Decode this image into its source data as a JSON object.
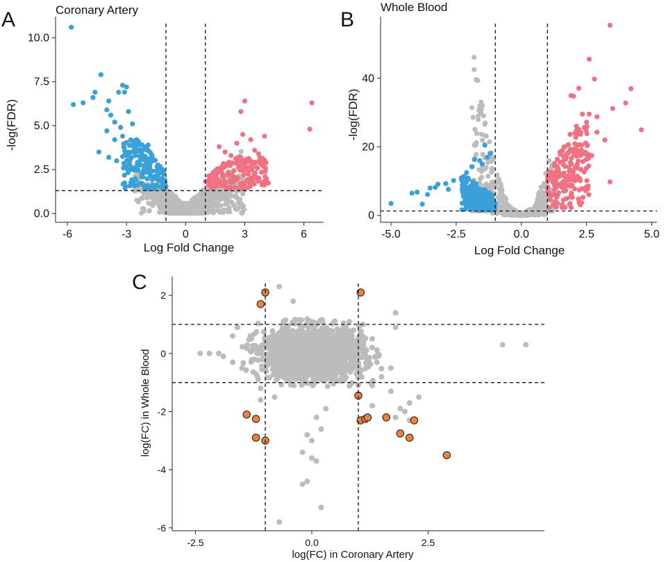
{
  "colors": {
    "down": "#3b9fd8",
    "up": "#f07182",
    "ns": "#bcbcbc",
    "highlight": "#f08040",
    "highlight_edge": "#222222"
  },
  "chart_data": [
    {
      "panel": "A",
      "type": "scatter",
      "title": "Coronary Artery",
      "xlabel": "Log Fold Change",
      "ylabel": "-log(FDR)",
      "xlim": [
        -6.6,
        7.0
      ],
      "ylim": [
        -0.5,
        11.2
      ],
      "xticks": [
        -6,
        -3,
        0,
        3,
        6
      ],
      "xtick_labels": [
        "-6",
        "-3",
        "0",
        "3",
        "6"
      ],
      "yticks": [
        0,
        2.5,
        5,
        7.5,
        10
      ],
      "ytick_labels": [
        "0.0",
        "2.5",
        "5.0",
        "7.5",
        "10.0"
      ],
      "vlines": [
        -1,
        1
      ],
      "hlines": [
        1.3
      ],
      "series": [
        {
          "name": "down",
          "color_key": "down",
          "cluster": {
            "xmin": -3.2,
            "xmax": -1.0,
            "ymin": 1.4,
            "ymax": 4.2,
            "n": 160
          },
          "points": [
            [
              -5.8,
              10.6
            ],
            [
              -5.7,
              6.2
            ],
            [
              -5.2,
              6.3
            ],
            [
              -4.7,
              6.6
            ],
            [
              -4.3,
              7.9
            ],
            [
              -4.6,
              6.9
            ],
            [
              -4.4,
              3.5
            ],
            [
              -4.0,
              5.9
            ],
            [
              -3.9,
              6.4
            ],
            [
              -3.6,
              5.2
            ],
            [
              -3.4,
              6.9
            ],
            [
              -3.2,
              7.3
            ],
            [
              -3.1,
              6.9
            ],
            [
              -3.0,
              7.2
            ],
            [
              -2.9,
              5.8
            ],
            [
              -2.7,
              5.1
            ],
            [
              -3.8,
              5.6
            ],
            [
              -3.3,
              4.9
            ],
            [
              -4.0,
              4.7
            ],
            [
              -3.9,
              3.2
            ],
            [
              -3.5,
              3.0
            ],
            [
              -3.2,
              4.4
            ],
            [
              -2.5,
              4.2
            ],
            [
              -2.4,
              4.1
            ],
            [
              -2.1,
              3.8
            ],
            [
              -1.9,
              3.9
            ],
            [
              -3.6,
              4.2
            ],
            [
              -3.1,
              2.8
            ]
          ]
        },
        {
          "name": "up",
          "color_key": "up",
          "cluster": {
            "xmin": 1.0,
            "xmax": 4.2,
            "ymin": 1.4,
            "ymax": 3.2,
            "n": 170
          },
          "points": [
            [
              6.4,
              6.3
            ],
            [
              6.3,
              4.8
            ],
            [
              3.0,
              6.4
            ],
            [
              2.8,
              5.8
            ],
            [
              2.9,
              4.5
            ],
            [
              4.0,
              4.4
            ],
            [
              3.3,
              4.2
            ],
            [
              3.9,
              3.0
            ],
            [
              1.7,
              3.8
            ],
            [
              2.0,
              3.5
            ],
            [
              2.3,
              3.3
            ],
            [
              3.5,
              3.6
            ],
            [
              3.7,
              3.4
            ],
            [
              2.6,
              4.0
            ],
            [
              2.7,
              3.2
            ]
          ]
        },
        {
          "name": "ns",
          "color_key": "ns",
          "volcano": {
            "xmin": -2.6,
            "xmax": 3.0,
            "a": 0.45,
            "n": 750
          }
        }
      ]
    },
    {
      "panel": "B",
      "type": "scatter",
      "title": "Whole Blood",
      "xlabel": "Log Fold Change",
      "ylabel": "-log(FDR)",
      "xlim": [
        -5.4,
        5.2
      ],
      "ylim": [
        -2,
        58
      ],
      "xticks": [
        -5,
        -2.5,
        0,
        2.5,
        5
      ],
      "xtick_labels": [
        "-5.0",
        "-2.5",
        "0.0",
        "2.5",
        "5.0"
      ],
      "yticks": [
        0,
        20,
        40
      ],
      "ytick_labels": [
        "0",
        "20",
        "40"
      ],
      "vlines": [
        -1,
        1
      ],
      "hlines": [
        1.3
      ],
      "series": [
        {
          "name": "down",
          "color_key": "down",
          "cluster": {
            "xmin": -2.3,
            "xmax": -1.0,
            "ymin": 1.5,
            "ymax": 12.5,
            "n": 240
          },
          "points": [
            [
              -5.0,
              3.5
            ],
            [
              -4.2,
              6.5
            ],
            [
              -4.0,
              6.8
            ],
            [
              -3.8,
              3.3
            ],
            [
              -3.6,
              6.1
            ],
            [
              -3.5,
              8.0
            ],
            [
              -3.3,
              8.2
            ],
            [
              -3.2,
              9.1
            ],
            [
              -2.9,
              9.3
            ],
            [
              -2.8,
              7.6
            ],
            [
              -2.6,
              10.2
            ],
            [
              -2.3,
              11.0
            ],
            [
              -2.1,
              12.5
            ],
            [
              -1.9,
              14.2
            ],
            [
              -1.8,
              16.3
            ],
            [
              -1.6,
              16.0
            ],
            [
              -1.5,
              15.0
            ],
            [
              -1.4,
              20.5
            ],
            [
              -1.2,
              18.1
            ],
            [
              -1.3,
              17.0
            ]
          ]
        },
        {
          "name": "up",
          "color_key": "up",
          "cluster": {
            "xmin": 1.0,
            "xmax": 2.6,
            "ymin": 2,
            "ymax": 30,
            "n": 200
          },
          "points": [
            [
              3.4,
              55.5
            ],
            [
              2.6,
              45.6
            ],
            [
              2.8,
              39.8
            ],
            [
              2.2,
              37.1
            ],
            [
              4.2,
              37.0
            ],
            [
              1.9,
              35.0
            ],
            [
              2.0,
              34.8
            ],
            [
              4.0,
              32.8
            ],
            [
              3.5,
              31.2
            ],
            [
              4.6,
              25.0
            ],
            [
              3.4,
              9.8
            ],
            [
              2.9,
              28.8
            ],
            [
              2.5,
              27.2
            ],
            [
              2.9,
              24.3
            ],
            [
              3.2,
              22.0
            ],
            [
              2.7,
              17.5
            ]
          ]
        },
        {
          "name": "ns",
          "color_key": "ns",
          "volcano": {
            "xmin": -1.9,
            "xmax": 1.2,
            "a": 14.5,
            "n": 900
          }
        }
      ]
    },
    {
      "panel": "C",
      "type": "scatter",
      "title": "",
      "xlabel": "log(FC) in Coronary Artery",
      "ylabel": "log(FC) in Whole Blood",
      "xlim": [
        -3.0,
        5.0
      ],
      "ylim": [
        -6.1,
        2.65
      ],
      "xticks": [
        -2.5,
        0,
        2.5
      ],
      "xtick_labels": [
        "-2.5",
        "0.0",
        "2.5"
      ],
      "yticks": [
        2,
        0,
        -2,
        -4,
        -6
      ],
      "ytick_labels": [
        "2",
        "0",
        "-2",
        "-4",
        "-6"
      ],
      "vlines": [
        -1,
        1
      ],
      "hlines": [
        1,
        -1
      ],
      "series": [
        {
          "name": "ns",
          "color_key": "ns",
          "cloud": {
            "cx": 0.0,
            "cy": 0.0,
            "sx": 0.55,
            "sy": 0.45,
            "n": 1600
          },
          "points": [
            [
              -2.4,
              0.0
            ],
            [
              -2.2,
              0.0
            ],
            [
              -2.0,
              0.0
            ],
            [
              -1.9,
              -0.1
            ],
            [
              -1.7,
              -0.3
            ],
            [
              -1.5,
              -0.5
            ],
            [
              -1.7,
              0.6
            ],
            [
              -1.6,
              0.9
            ],
            [
              -1.3,
              0.5
            ],
            [
              -1.2,
              -0.7
            ],
            [
              -1.1,
              -1.6
            ],
            [
              -1.1,
              -1.2
            ],
            [
              -0.8,
              -1.5
            ],
            [
              -0.7,
              2.3
            ],
            [
              -0.4,
              1.8
            ],
            [
              -0.1,
              -2.8
            ],
            [
              0.0,
              -3.0
            ],
            [
              -0.2,
              -3.4
            ],
            [
              0.0,
              -3.6
            ],
            [
              0.1,
              -3.7
            ],
            [
              -0.1,
              -4.4
            ],
            [
              -0.2,
              -4.5
            ],
            [
              0.2,
              -5.3
            ],
            [
              -0.7,
              -5.8
            ],
            [
              0.2,
              -2.6
            ],
            [
              0.3,
              -1.9
            ],
            [
              0.1,
              -2.2
            ],
            [
              1.1,
              1.0
            ],
            [
              1.4,
              -0.3
            ],
            [
              1.7,
              -0.5
            ],
            [
              1.5,
              -0.8
            ],
            [
              1.3,
              -1.1
            ],
            [
              1.3,
              -1.8
            ],
            [
              1.7,
              -1.3
            ],
            [
              1.9,
              -1.9
            ],
            [
              1.8,
              -2.2
            ],
            [
              2.0,
              -2.0
            ],
            [
              2.1,
              -1.7
            ],
            [
              2.3,
              -1.5
            ],
            [
              2.1,
              -2.3
            ],
            [
              1.8,
              1.4
            ],
            [
              1.8,
              0.9
            ],
            [
              4.1,
              0.3
            ],
            [
              4.6,
              0.3
            ]
          ]
        },
        {
          "name": "highlight",
          "color_key": "highlight",
          "outlined": true,
          "points": [
            [
              -1.0,
              2.1
            ],
            [
              -1.1,
              1.7
            ],
            [
              1.05,
              2.1
            ],
            [
              -1.4,
              -2.1
            ],
            [
              -1.2,
              -2.25
            ],
            [
              -1.2,
              -2.9
            ],
            [
              -1.0,
              -3.0
            ],
            [
              1.0,
              -1.45
            ],
            [
              1.05,
              -2.3
            ],
            [
              1.15,
              -2.25
            ],
            [
              1.2,
              -2.2
            ],
            [
              1.6,
              -2.2
            ],
            [
              1.9,
              -2.75
            ],
            [
              2.1,
              -2.9
            ],
            [
              2.2,
              -2.3
            ],
            [
              2.9,
              -3.5
            ]
          ]
        }
      ]
    }
  ]
}
